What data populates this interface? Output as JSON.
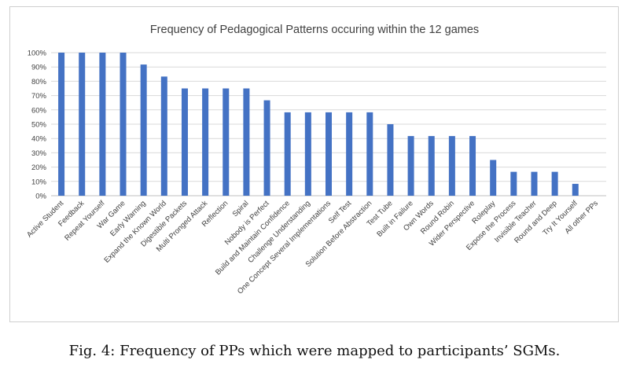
{
  "chart_data": {
    "type": "bar",
    "title": "Frequency of Pedagogical Patterns occuring within the 12 games",
    "xlabel": "",
    "ylabel": "",
    "ylim": [
      0,
      100
    ],
    "y_ticks": [
      "0%",
      "10%",
      "20%",
      "30%",
      "40%",
      "50%",
      "60%",
      "70%",
      "80%",
      "90%",
      "100%"
    ],
    "grid": true,
    "legend": "none",
    "bar_color": "#4472C4",
    "categories": [
      "Active Student",
      "Feedback",
      "Repeat Yourself",
      "War Game",
      "Early Warning",
      "Expand the Known World",
      "Digestible Packets",
      "Multi Pronged Attack",
      "Reflection",
      "Spiral",
      "Nobody is Perfect",
      "Build and Maintain Confidence",
      "Challenge Understanding",
      "One Concept Several Implementations",
      "Self Test",
      "Solution Before Abstraction",
      "Test Tube",
      "Built in Failure",
      "Own Words",
      "Round Robin",
      "Wider Perspective",
      "Roleplay",
      "Expose the Process",
      "Invisible Teacher",
      "Round and Deep",
      "Try It Yourself",
      "All  other PPs"
    ],
    "values": [
      100,
      100,
      100,
      100,
      91.7,
      83.3,
      75,
      75,
      75,
      75,
      66.7,
      58.3,
      58.3,
      58.3,
      58.3,
      58.3,
      50,
      41.7,
      41.7,
      41.7,
      41.7,
      25,
      16.7,
      16.7,
      16.7,
      8.3,
      0
    ]
  },
  "caption": "Fig. 4: Frequency of PPs which were mapped to participants’ SGMs."
}
